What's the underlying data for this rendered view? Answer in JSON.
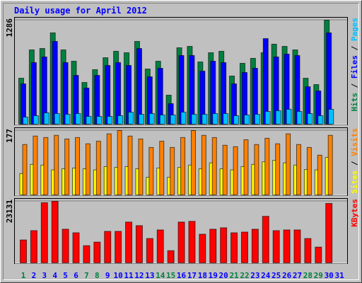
{
  "chart_data": [
    {
      "type": "bar",
      "title": "Daily usage for April 2012",
      "categories": [
        "1",
        "2",
        "3",
        "4",
        "5",
        "6",
        "7",
        "8",
        "9",
        "10",
        "11",
        "12",
        "13",
        "14",
        "15",
        "16",
        "17",
        "18",
        "19",
        "20",
        "21",
        "22",
        "23",
        "24",
        "25",
        "26",
        "27",
        "28",
        "29",
        "30",
        "31"
      ],
      "category_colors": [
        "#008040",
        "#0000ff",
        "#0000ff",
        "#0000ff",
        "#0000ff",
        "#0000ff",
        "#008040",
        "#008040",
        "#0000ff",
        "#0000ff",
        "#0000ff",
        "#0000ff",
        "#0000ff",
        "#008040",
        "#008040",
        "#0000ff",
        "#0000ff",
        "#0000ff",
        "#0000ff",
        "#0000ff",
        "#008040",
        "#008040",
        "#0000ff",
        "#0000ff",
        "#0000ff",
        "#0000ff",
        "#0000ff",
        "#008040",
        "#008040",
        "#0000ff",
        "#0000ff"
      ],
      "legend_separator": " / ",
      "ylim": [
        0,
        1286
      ],
      "yticks": [
        1286
      ],
      "series": [
        {
          "name": "Hits",
          "color": "#008040",
          "values": [
            573,
            921,
            938,
            1130,
            921,
            782,
            521,
            678,
            825,
            904,
            886,
            1025,
            686,
            782,
            365,
            947,
            964,
            773,
            886,
            904,
            600,
            756,
            817,
            886,
            991,
            964,
            921,
            573,
            495,
            1286,
            0
          ]
        },
        {
          "name": "Files",
          "color": "#0000ff",
          "values": [
            504,
            765,
            834,
            1025,
            765,
            608,
            452,
            608,
            730,
            765,
            730,
            938,
            591,
            695,
            261,
            852,
            852,
            660,
            782,
            765,
            504,
            643,
            695,
            1060,
            834,
            869,
            852,
            469,
            417,
            1130,
            0
          ]
        },
        {
          "name": "Pages",
          "color": "#00c0ff",
          "values": [
            96,
            113,
            148,
            139,
            130,
            139,
            104,
            104,
            104,
            113,
            156,
            130,
            139,
            122,
            122,
            156,
            130,
            130,
            139,
            139,
            113,
            122,
            130,
            165,
            174,
            191,
            165,
            139,
            113,
            191,
            0
          ]
        }
      ]
    },
    {
      "type": "bar",
      "legend_separator": " / ",
      "ylim": [
        0,
        177
      ],
      "yticks": [
        177
      ],
      "series": [
        {
          "name": "Sites",
          "color": "#ffff00",
          "values": [
            60,
            85,
            83,
            70,
            73,
            75,
            73,
            70,
            79,
            77,
            79,
            73,
            50,
            75,
            50,
            77,
            83,
            73,
            89,
            73,
            70,
            79,
            85,
            92,
            96,
            89,
            83,
            71,
            70,
            104,
            0
          ]
        },
        {
          "name": "Visits",
          "color": "#ff8000",
          "values": [
            139,
            162,
            158,
            164,
            154,
            158,
            141,
            148,
            168,
            177,
            162,
            154,
            131,
            148,
            131,
            158,
            177,
            164,
            158,
            137,
            133,
            152,
            139,
            156,
            141,
            168,
            139,
            131,
            110,
            164,
            0
          ]
        }
      ]
    },
    {
      "type": "bar",
      "ylim": [
        0,
        23131
      ],
      "yticks": [
        23131
      ],
      "series": [
        {
          "name": "KBytes",
          "color": "#ff0000",
          "values": [
            8774,
            12230,
            22600,
            23131,
            12762,
            11433,
            6647,
            7976,
            11964,
            11964,
            15421,
            14091,
            9306,
            12496,
            4786,
            15421,
            15687,
            10901,
            12762,
            13294,
            11433,
            11699,
            12762,
            17548,
            12230,
            12496,
            12496,
            9306,
            6115,
            22334,
            0
          ]
        }
      ]
    }
  ]
}
